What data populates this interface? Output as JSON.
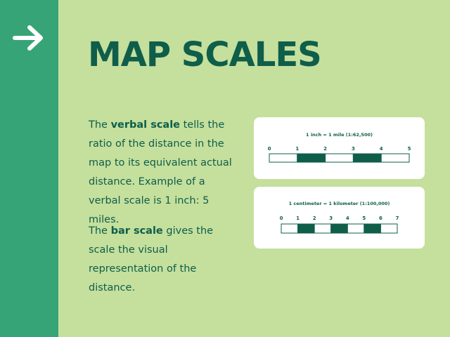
{
  "title": "MAP SCALES",
  "paragraph_verbal": {
    "prefix": "The ",
    "bold": "verbal scale",
    "rest": " tells the ratio of the distance in the map to its equivalent actual distance. Example of a verbal scale is 1 inch: 5 miles."
  },
  "paragraph_bar": {
    "prefix": "The ",
    "bold": "bar scale",
    "rest": " gives the scale the visual representation of the distance."
  },
  "scale_inch": {
    "label": "1 inch = 1 mile (1:62,500)",
    "ticks": [
      "0",
      "1",
      "2",
      "3",
      "4",
      "5"
    ]
  },
  "scale_cm": {
    "label": "1 centimeter = 1 kilometer (1:100,000)",
    "ticks": [
      "0",
      "1",
      "2",
      "3",
      "4",
      "5",
      "6",
      "7"
    ]
  },
  "colors": {
    "background": "#c5df9d",
    "sidebar": "#37a477",
    "accent": "#0e5e4a",
    "arrow": "#ffffff"
  },
  "icons": {
    "arrow": "arrow-right-icon"
  }
}
